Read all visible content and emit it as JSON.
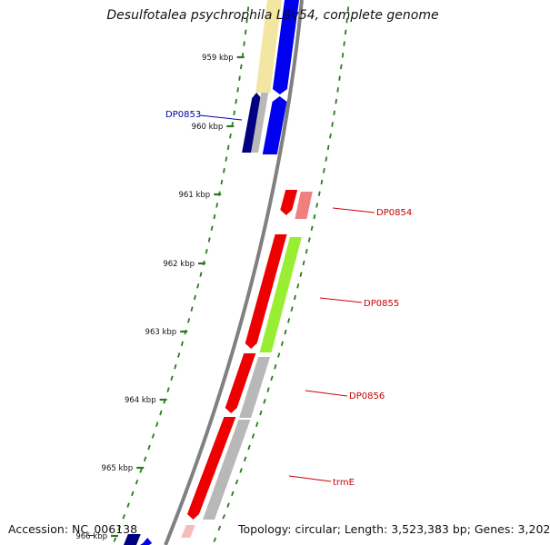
{
  "title": "Desulfotalea psychrophila LSv54, complete genome",
  "footer": {
    "accession": "Accession: NC_006138",
    "summary": "Topology: circular; Length: 3,523,383 bp; Genes: 3,202"
  },
  "colors": {
    "backbone": "#808080",
    "tick": "#2a7a1e",
    "red": "#ee0000",
    "pink": "#f08080",
    "green": "#99ee33",
    "gray": "#b8b8b8",
    "blue": "#0000ee",
    "navy": "#000080",
    "pale_yellow": "#f2e6a2",
    "label_blue": "#0000aa",
    "label_red": "#cc0000"
  },
  "tick_labels": [
    "959 kbp",
    "960 kbp",
    "961 kbp",
    "962 kbp",
    "963 kbp",
    "964 kbp",
    "965 kbp",
    "966 kbp"
  ],
  "gene_labels": [
    {
      "text": "DP0853",
      "strand": "left"
    },
    {
      "text": "DP0854",
      "strand": "right"
    },
    {
      "text": "DP0855",
      "strand": "right"
    },
    {
      "text": "DP0856",
      "strand": "right"
    },
    {
      "text": "trmE",
      "strand": "right"
    }
  ]
}
